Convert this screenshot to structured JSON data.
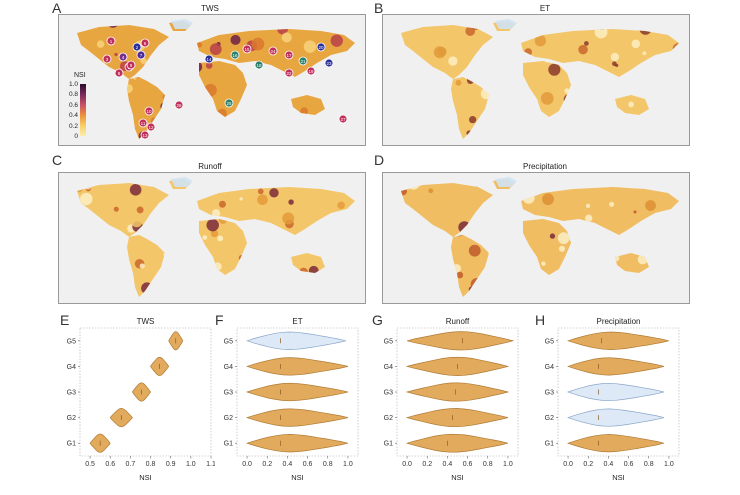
{
  "colors": {
    "low": "#f5c46a",
    "mid": "#d98a2a",
    "high": "#7a2a3a",
    "land_base": "#e9a845",
    "sea": "#f0f0f0",
    "violin_fill": "#e2aa5c",
    "violin_stroke": "#b07b34",
    "violin_light": "#dde9f7",
    "violin_light_stroke": "#8aa6c8"
  },
  "panels": {
    "A": {
      "letter": "A",
      "title": "TWS"
    },
    "B": {
      "letter": "B",
      "title": "ET"
    },
    "C": {
      "letter": "C",
      "title": "Runoff"
    },
    "D": {
      "letter": "D",
      "title": "Precipitation"
    },
    "E": {
      "letter": "E",
      "title": "TWS"
    },
    "F": {
      "letter": "F",
      "title": "ET"
    },
    "G": {
      "letter": "G",
      "title": "Runoff"
    },
    "H": {
      "letter": "H",
      "title": "Precipitation"
    }
  },
  "colorbar": {
    "label": "NSI",
    "ticks": [
      "1.0",
      "0.8",
      "0.6",
      "0.4",
      "0.2",
      "0"
    ]
  },
  "basin_markers": [
    {
      "id": "1",
      "color": "#c0305a"
    },
    {
      "id": "2",
      "color": "#2a2f9a"
    },
    {
      "id": "3",
      "color": "#c0305a"
    },
    {
      "id": "4",
      "color": "#7b2d8e"
    },
    {
      "id": "5",
      "color": "#c0305a"
    },
    {
      "id": "6",
      "color": "#c0305a"
    },
    {
      "id": "7",
      "color": "#4b2a9a"
    },
    {
      "id": "8",
      "color": "#c0305a"
    },
    {
      "id": "9",
      "color": "#c0305a"
    },
    {
      "id": "10",
      "color": "#c0305a"
    },
    {
      "id": "11",
      "color": "#c0305a"
    },
    {
      "id": "12",
      "color": "#c0305a"
    },
    {
      "id": "13",
      "color": "#c0305a"
    },
    {
      "id": "14",
      "color": "#2a2f9a"
    },
    {
      "id": "15",
      "color": "#c0305a"
    },
    {
      "id": "16",
      "color": "#2a7f6a"
    },
    {
      "id": "17",
      "color": "#c0305a"
    },
    {
      "id": "18",
      "color": "#2a7f6a"
    },
    {
      "id": "19",
      "color": "#c0305a"
    },
    {
      "id": "20",
      "color": "#2a2f9a"
    },
    {
      "id": "21",
      "color": "#2a7f6a"
    },
    {
      "id": "22",
      "color": "#c0305a"
    },
    {
      "id": "23",
      "color": "#2a2f9a"
    },
    {
      "id": "24",
      "color": "#c0305a"
    },
    {
      "id": "25",
      "color": "#2a7f6a"
    },
    {
      "id": "26",
      "color": "#c0305a"
    },
    {
      "id": "27",
      "color": "#c0305a"
    }
  ],
  "chart_data": [
    {
      "type": "violin",
      "panel": "E",
      "title": "TWS",
      "xlabel": "NSI",
      "categories": [
        "G5",
        "G4",
        "G3",
        "G2",
        "G1"
      ],
      "xlim": [
        0.45,
        1.1
      ],
      "xticks": [
        "0.5",
        "0.6",
        "0.7",
        "0.8",
        "0.9",
        "1.0",
        "1.1"
      ],
      "xtick_values": [
        0.5,
        0.6,
        0.7,
        0.8,
        0.9,
        1.0,
        1.1
      ],
      "groups": [
        {
          "name": "G5",
          "min": 0.89,
          "max": 0.96,
          "median": 0.925,
          "highlight": false
        },
        {
          "name": "G4",
          "min": 0.8,
          "max": 0.89,
          "median": 0.845,
          "highlight": false
        },
        {
          "name": "G3",
          "min": 0.71,
          "max": 0.8,
          "median": 0.755,
          "highlight": false
        },
        {
          "name": "G2",
          "min": 0.6,
          "max": 0.71,
          "median": 0.655,
          "highlight": false
        },
        {
          "name": "G1",
          "min": 0.5,
          "max": 0.6,
          "median": 0.55,
          "highlight": false
        }
      ]
    },
    {
      "type": "violin",
      "panel": "F",
      "title": "ET",
      "xlabel": "NSI",
      "categories": [
        "G5",
        "G4",
        "G3",
        "G2",
        "G1"
      ],
      "xlim": [
        -0.1,
        1.1
      ],
      "xticks": [
        "0.0",
        "0.2",
        "0.4",
        "0.6",
        "0.8",
        "1.0"
      ],
      "xtick_values": [
        0,
        0.2,
        0.4,
        0.6,
        0.8,
        1.0
      ],
      "groups": [
        {
          "name": "G5",
          "min": 0.0,
          "max": 0.98,
          "median": 0.33,
          "highlight": true
        },
        {
          "name": "G4",
          "min": 0.0,
          "max": 1.0,
          "median": 0.33,
          "highlight": false
        },
        {
          "name": "G3",
          "min": 0.0,
          "max": 1.0,
          "median": 0.33,
          "highlight": false
        },
        {
          "name": "G2",
          "min": 0.0,
          "max": 1.0,
          "median": 0.33,
          "highlight": false
        },
        {
          "name": "G1",
          "min": 0.0,
          "max": 1.0,
          "median": 0.33,
          "highlight": false
        }
      ]
    },
    {
      "type": "violin",
      "panel": "G",
      "title": "Runoff",
      "xlabel": "NSI",
      "categories": [
        "G5",
        "G4",
        "G3",
        "G2",
        "G1"
      ],
      "xlim": [
        -0.1,
        1.1
      ],
      "xticks": [
        "0.0",
        "0.2",
        "0.4",
        "0.6",
        "0.8",
        "1.0"
      ],
      "xtick_values": [
        0,
        0.2,
        0.4,
        0.6,
        0.8,
        1.0
      ],
      "groups": [
        {
          "name": "G5",
          "min": 0.0,
          "max": 1.05,
          "median": 0.55,
          "highlight": false
        },
        {
          "name": "G4",
          "min": 0.0,
          "max": 1.0,
          "median": 0.5,
          "highlight": false
        },
        {
          "name": "G3",
          "min": 0.0,
          "max": 1.0,
          "median": 0.48,
          "highlight": false
        },
        {
          "name": "G2",
          "min": 0.0,
          "max": 1.0,
          "median": 0.45,
          "highlight": false
        },
        {
          "name": "G1",
          "min": 0.0,
          "max": 1.0,
          "median": 0.4,
          "highlight": false
        }
      ]
    },
    {
      "type": "violin",
      "panel": "H",
      "title": "Precipitation",
      "xlabel": "NSI",
      "categories": [
        "G5",
        "G4",
        "G3",
        "G2",
        "G1"
      ],
      "xlim": [
        -0.1,
        1.1
      ],
      "xticks": [
        "0.0",
        "0.2",
        "0.4",
        "0.6",
        "0.8",
        "1.0"
      ],
      "xtick_values": [
        0,
        0.2,
        0.4,
        0.6,
        0.8,
        1.0
      ],
      "groups": [
        {
          "name": "G5",
          "min": 0.0,
          "max": 1.0,
          "median": 0.33,
          "highlight": false
        },
        {
          "name": "G4",
          "min": 0.0,
          "max": 0.95,
          "median": 0.3,
          "highlight": false
        },
        {
          "name": "G3",
          "min": 0.0,
          "max": 0.95,
          "median": 0.3,
          "highlight": true
        },
        {
          "name": "G2",
          "min": 0.0,
          "max": 0.95,
          "median": 0.3,
          "highlight": true
        },
        {
          "name": "G1",
          "min": 0.0,
          "max": 0.95,
          "median": 0.3,
          "highlight": false
        }
      ]
    }
  ]
}
